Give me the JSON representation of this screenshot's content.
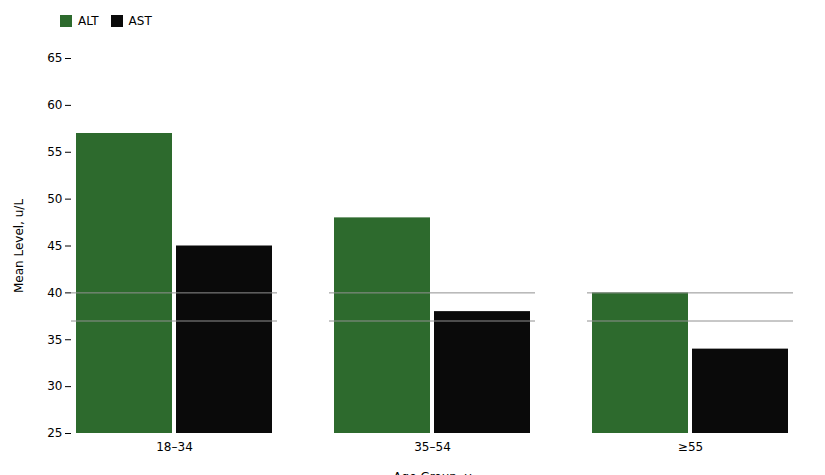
{
  "chart_data": {
    "type": "bar",
    "xlabel": "Age Group, y",
    "ylabel": "Mean Level, u/L",
    "categories": [
      "18–34",
      "35–54",
      "≥55"
    ],
    "series": [
      {
        "name": "ALT",
        "color": "#2d6a2d",
        "values": [
          57,
          48,
          40
        ]
      },
      {
        "name": "AST",
        "color": "#0a0a0a",
        "values": [
          45,
          38,
          34
        ]
      }
    ],
    "reference_lines": [
      {
        "value": 40,
        "color": "#909090"
      },
      {
        "value": 37,
        "color": "#909090"
      }
    ],
    "ylim": [
      25,
      65
    ],
    "yticks": [
      25,
      30,
      35,
      40,
      45,
      50,
      55,
      60,
      65
    ],
    "grid": false,
    "legend": "upper left"
  }
}
